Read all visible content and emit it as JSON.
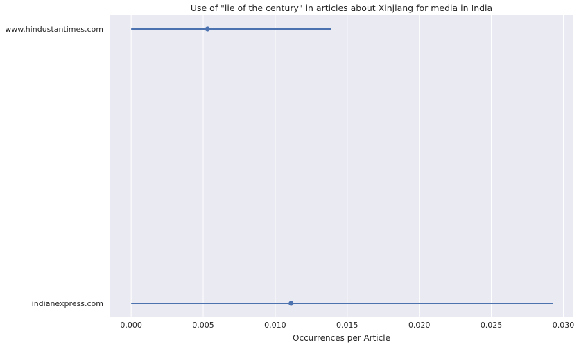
{
  "chart_data": {
    "type": "pointplot",
    "title": "Use of \"lie of the century\" in articles about Xinjiang for media in India",
    "xlabel": "Occurrences per Article",
    "ylabel": "",
    "xlim": [
      -0.0015,
      0.0307
    ],
    "xticks": [
      0.0,
      0.005,
      0.01,
      0.015,
      0.02,
      0.025,
      0.03
    ],
    "xtick_labels": [
      "0.000",
      "0.005",
      "0.010",
      "0.015",
      "0.020",
      "0.025",
      "0.030"
    ],
    "categories": [
      "www.hindustantimes.com",
      "indianexpress.com"
    ],
    "points": [
      {
        "category": "www.hindustantimes.com",
        "value": 0.0053,
        "ci_low": 0.0,
        "ci_high": 0.0139
      },
      {
        "category": "indianexpress.com",
        "value": 0.0111,
        "ci_low": 0.0,
        "ci_high": 0.0293
      }
    ],
    "grid": true,
    "colors": {
      "background": "#EAEAF2",
      "grid": "#FFFFFF",
      "series": "#4C72B0"
    }
  }
}
